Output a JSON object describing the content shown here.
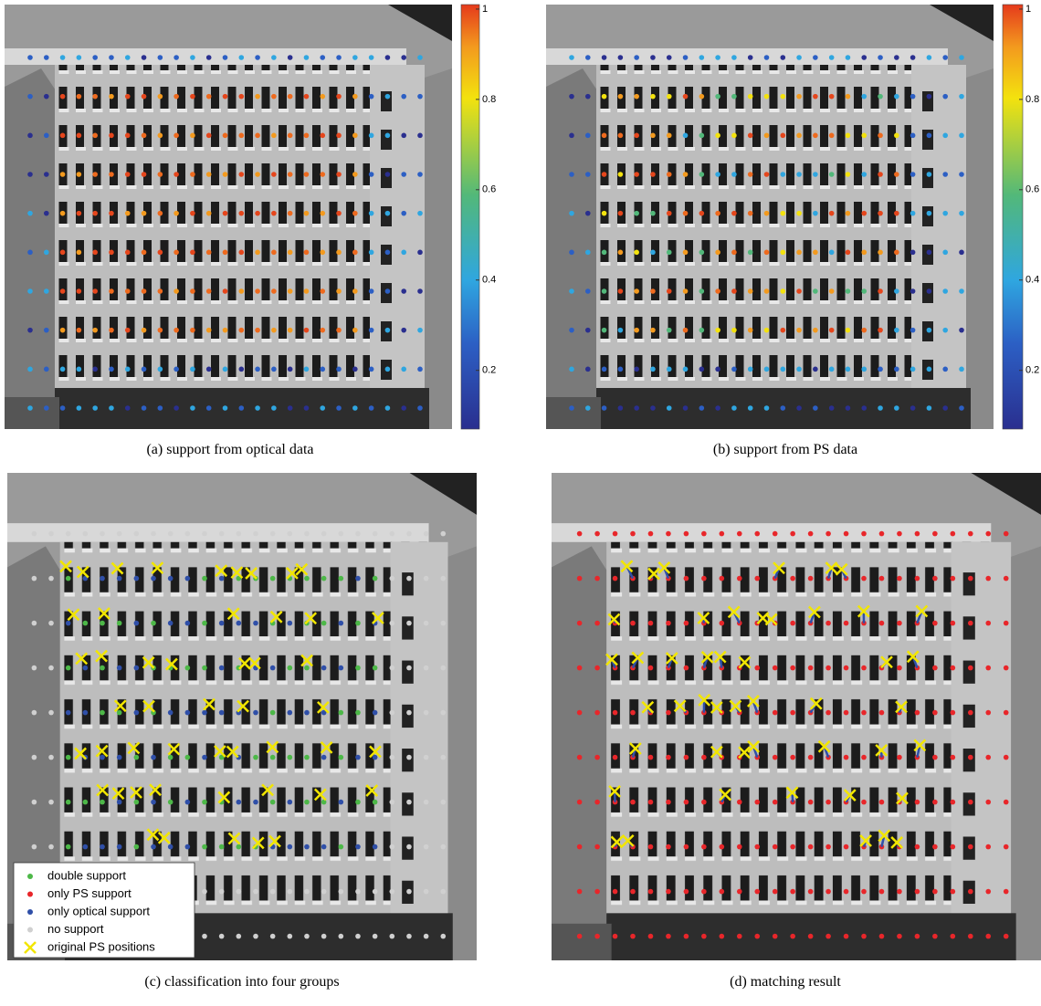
{
  "panels": [
    {
      "caption": "(a) support from optical data",
      "colorbar": {
        "lim": [
          0.07,
          1.01
        ],
        "ticks": [
          0.2,
          0.4,
          0.6,
          0.8,
          1
        ]
      }
    },
    {
      "caption": "(b) support from PS data",
      "colorbar": {
        "lim": [
          0.07,
          1.01
        ],
        "ticks": [
          0.2,
          0.4,
          0.6,
          0.8,
          1
        ]
      }
    },
    {
      "caption": "(c) classification into four groups",
      "legend": [
        {
          "label": "double support",
          "color": "#4db848",
          "marker": "dot"
        },
        {
          "label": "only PS support",
          "color": "#e8262a",
          "marker": "dot"
        },
        {
          "label": "only optical support",
          "color": "#2f4fa8",
          "marker": "dot"
        },
        {
          "label": "no support",
          "color": "#d0d0d0",
          "marker": "dot"
        },
        {
          "label": "original PS positions",
          "color": "#f2e600",
          "marker": "x"
        }
      ]
    },
    {
      "caption": "(d) matching result"
    }
  ]
}
